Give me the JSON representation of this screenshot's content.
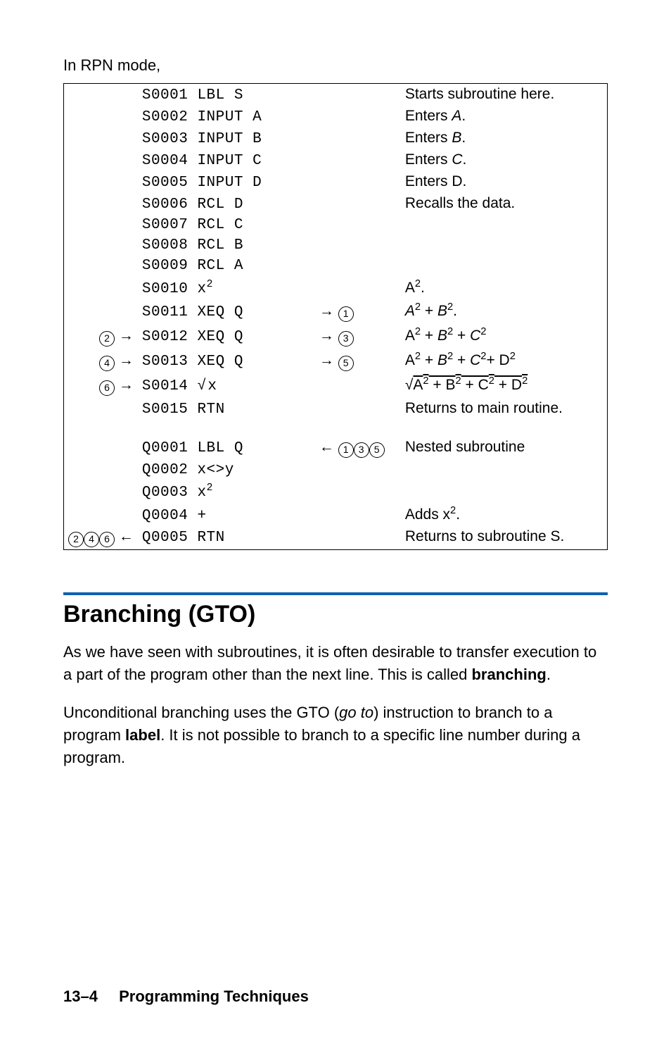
{
  "intro": "In RPN mode,",
  "rows": [
    {
      "left": "",
      "code": "S0001 LBL S",
      "mid": "",
      "desc": "Starts subroutine here."
    },
    {
      "left": "",
      "code": "S0002 INPUT A",
      "mid": "",
      "desc_html": "Enters <span class='italic'>A</span>."
    },
    {
      "left": "",
      "code": "S0003 INPUT B",
      "mid": "",
      "desc_html": "Enters <span class='italic'>B</span>."
    },
    {
      "left": "",
      "code": "S0004 INPUT C",
      "mid": "",
      "desc_html": "Enters <span class='italic'>C</span>."
    },
    {
      "left": "",
      "code": "S0005 INPUT D",
      "mid": "",
      "desc": "Enters D."
    },
    {
      "left": "",
      "code": "S0006 RCL D",
      "mid": "",
      "desc": "Recalls the data."
    },
    {
      "left": "",
      "code": "S0007 RCL C",
      "mid": "",
      "desc": ""
    },
    {
      "left": "",
      "code": "S0008 RCL B",
      "mid": "",
      "desc": ""
    },
    {
      "left": "",
      "code": "S0009 RCL A",
      "mid": "",
      "desc": ""
    },
    {
      "left": "",
      "code_html": "S0010 x<span class='sup'>2</span>",
      "mid": "",
      "desc_html": "A<span class='sup'>2</span>."
    },
    {
      "left": "",
      "code": "S0011 XEQ Q",
      "mid_html": "<span class='arrow'>→</span> <span class='circ'>1</span>",
      "desc_html": "<span class='italic'>A</span><span class='sup'>2</span> + <span class='italic'>B</span><span class='sup'>2</span>."
    },
    {
      "left_html": "<span class='circ'>2</span> <span class='arrow'>→</span>",
      "code": "S0012 XEQ Q",
      "mid_html": "<span class='arrow'>→</span> <span class='circ'>3</span>",
      "desc_html": "A<span class='sup'>2</span> + <span class='italic'>B</span><span class='sup'>2</span> + <span class='italic'>C</span><span class='sup'>2</span>"
    },
    {
      "left_html": "<span class='circ'>4</span> <span class='arrow'>→</span>",
      "code": "S0013 XEQ Q",
      "mid_html": "<span class='arrow'>→</span> <span class='circ'>5</span>",
      "desc_html": "A<span class='sup'>2</span> + <span class='italic'>B</span><span class='sup'>2</span> + <span class='italic'>C</span><span class='sup'>2</span>+ D<span class='sup'>2</span>"
    },
    {
      "left_html": "<span class='circ'>6</span> <span class='arrow'>→</span>",
      "code_html": "S0014 √&#8202;x",
      "mid": "",
      "desc_html": "<span class='sqrt'>√<span class='overline'>A<span class='sup'>2</span> + B<span class='sup'>2</span> + C<span class='sup'>2</span> + D<span class='sup'>2</span></span></span>"
    },
    {
      "left": "",
      "code": "S0015 RTN",
      "mid": "",
      "desc": "Returns to main routine."
    },
    {
      "gap": true
    },
    {
      "left": "",
      "code": "Q0001 LBL Q",
      "mid_html": "<span class='arrow'>←</span> <span class='circ'>1</span><span class='circ'>3</span><span class='circ'>5</span>",
      "desc": "Nested subroutine"
    },
    {
      "left": "",
      "code": "Q0002 x<>y",
      "mid": "",
      "desc": ""
    },
    {
      "left": "",
      "code_html": "Q0003 x<span class='sup'>2</span>",
      "mid": "",
      "desc": ""
    },
    {
      "left": "",
      "code": "Q0004 +",
      "mid": "",
      "desc_html": "Adds x<span class='sup'>2</span>."
    },
    {
      "left_html": "<span class='circ'>2</span><span class='circ'>4</span><span class='circ'>6</span> <span class='arrow'>←</span>",
      "code": "Q0005 RTN",
      "mid": "",
      "desc": "Returns to subroutine S."
    }
  ],
  "section_title": "Branching (GTO)",
  "para1_html": "As we have seen with subroutines, it is often desirable to transfer execution to a part of the program other than the next line. This is called <span class='bold'>branching</span>.",
  "para2_html": "Unconditional branching uses the GTO (<span class='italic'>go to</span>) instruction to branch to a program <span class='bold'>label</span>. It is not possible to branch to a specific line number during a program.",
  "footer_page": "13–4",
  "footer_chapter": "Programming Techniques",
  "colors": {
    "rule": "#1060b0",
    "text": "#000000",
    "bg": "#ffffff"
  }
}
